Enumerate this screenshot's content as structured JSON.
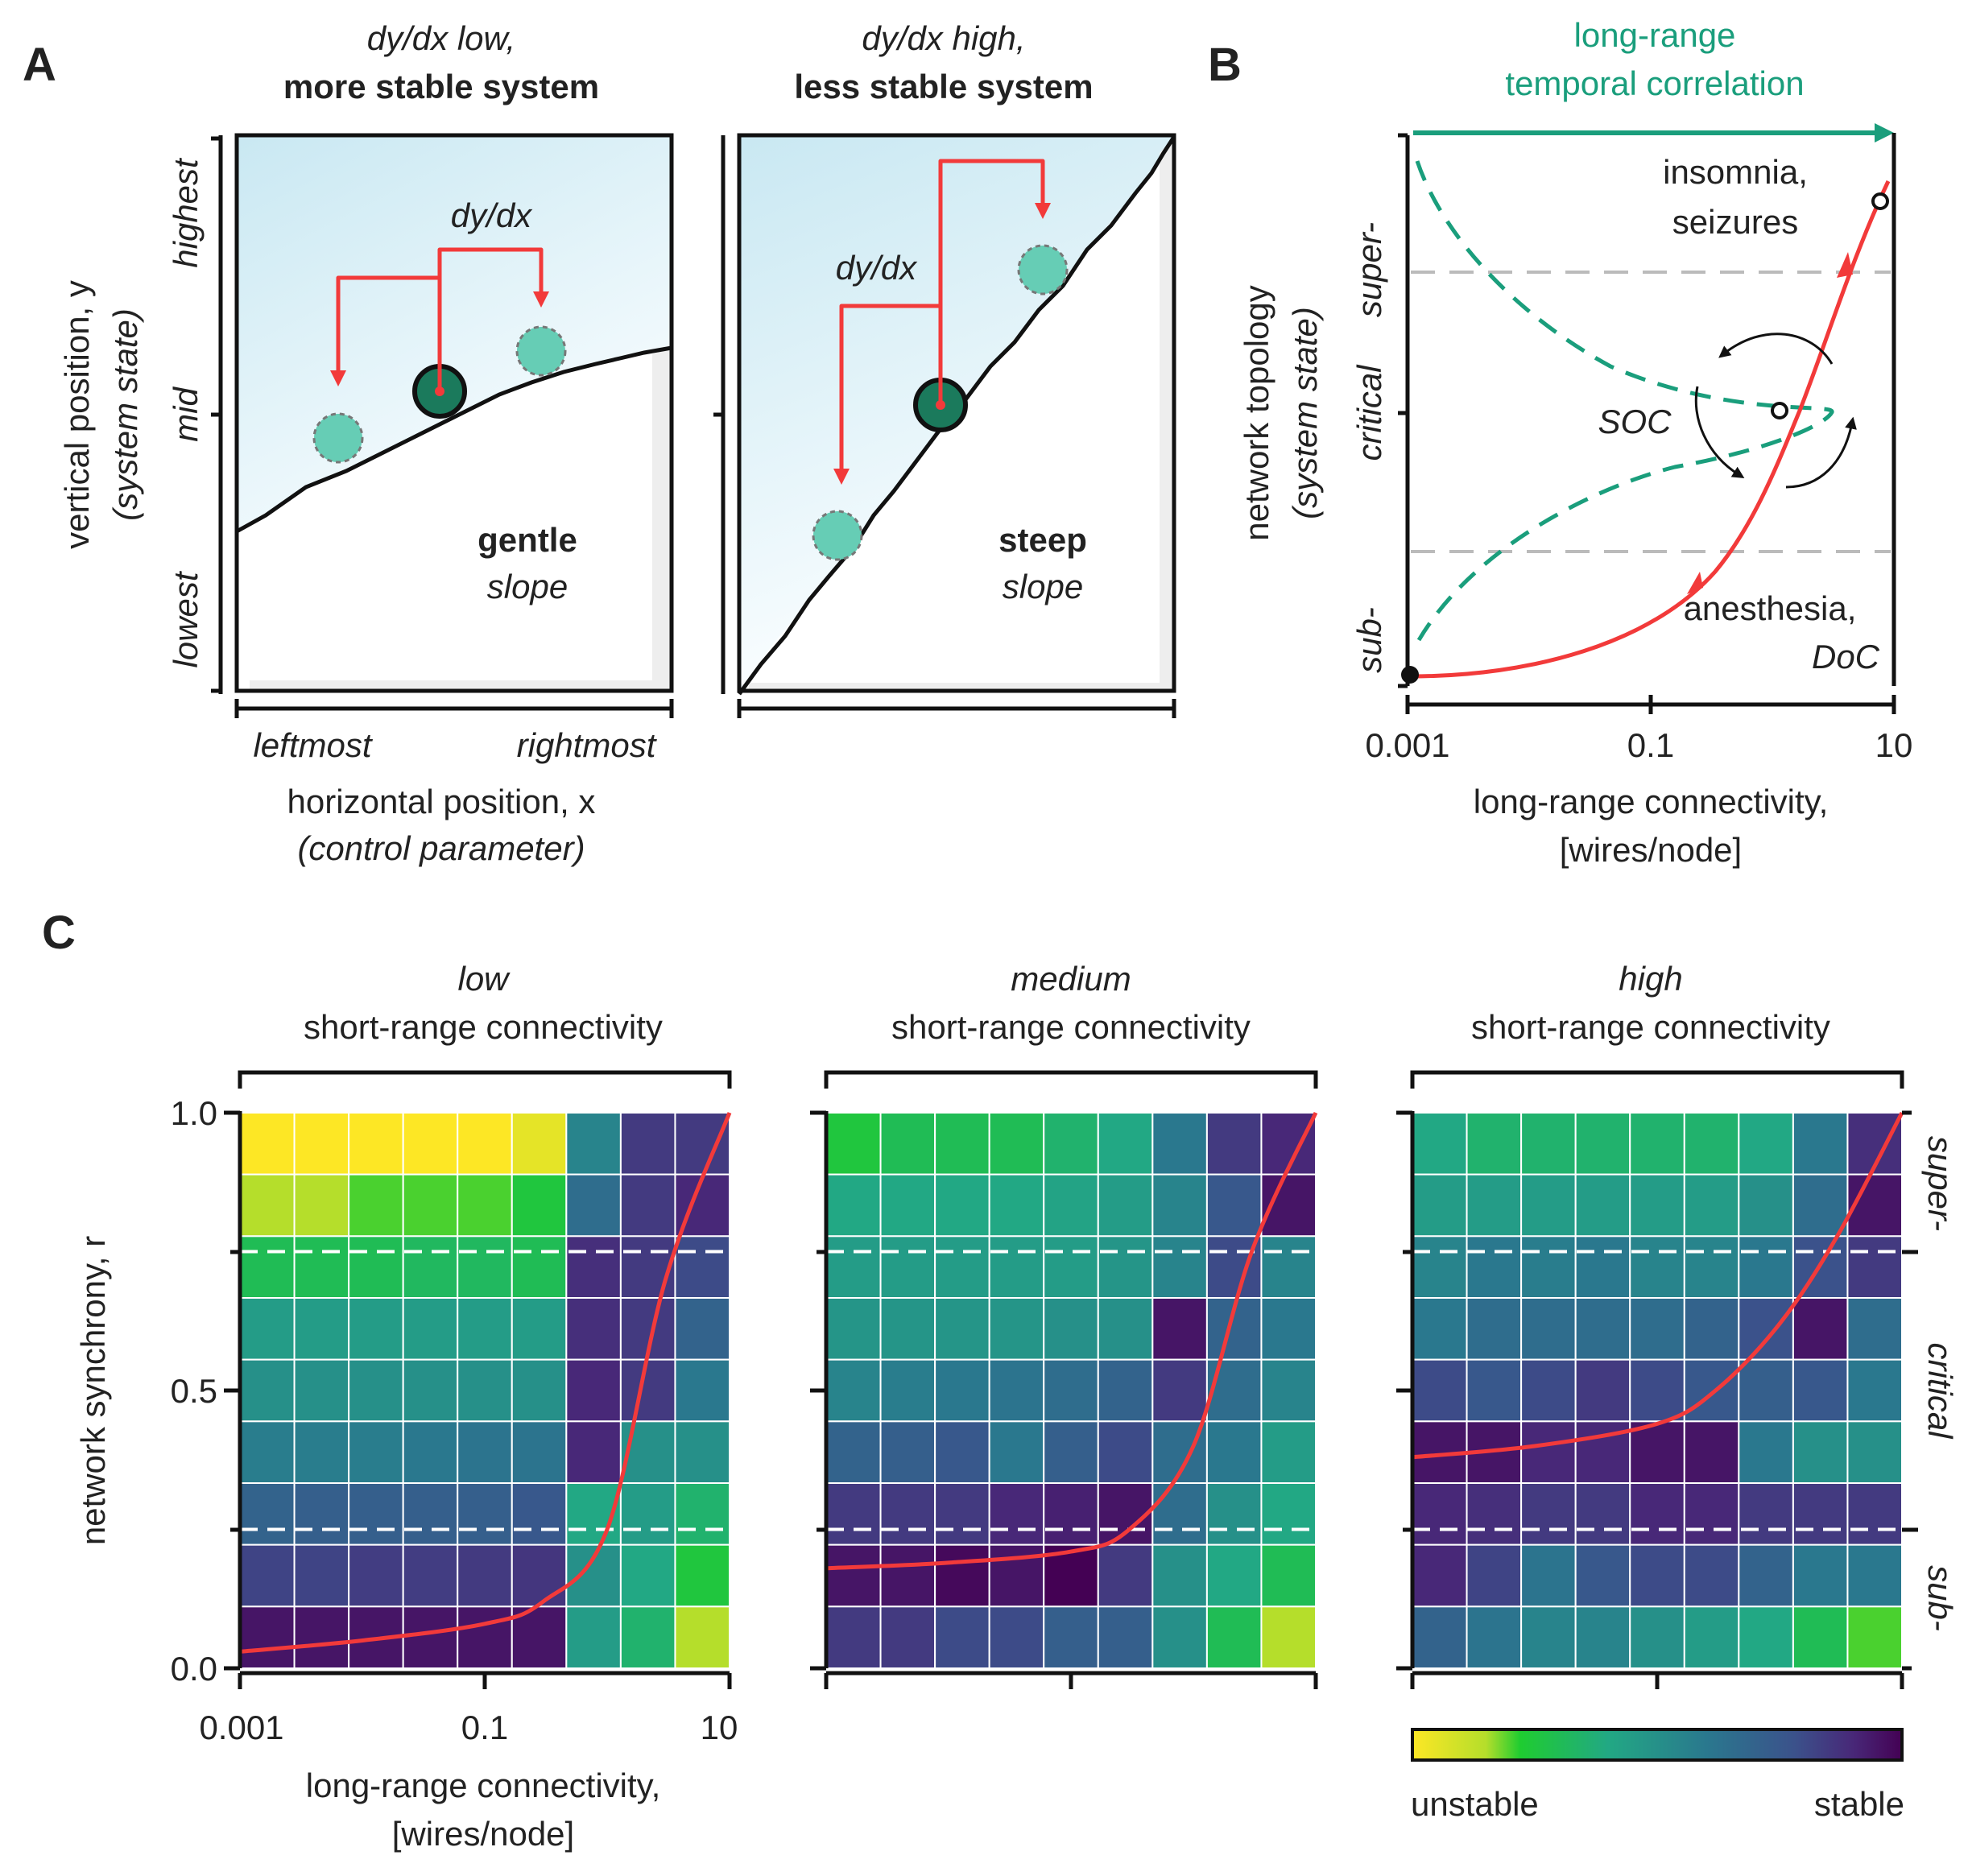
{
  "panel_labels": {
    "a": "A",
    "b": "B",
    "c": "C"
  },
  "panel_a": {
    "left": {
      "title_line1": "dy/dx low,",
      "title_line2": "more stable system",
      "slope_bold": "gentle",
      "slope_ital": "slope",
      "derivative": "dy/dx"
    },
    "right": {
      "title_line1": "dy/dx high,",
      "title_line2": "less stable system",
      "slope_bold": "steep",
      "slope_ital": "slope",
      "derivative": "dy/dx"
    },
    "y_ticks": [
      "highest",
      "mid",
      "lowest"
    ],
    "y_label_line1": "vertical position, y",
    "y_label_line2": "(system state)",
    "x_ticks": [
      "leftmost",
      "rightmost"
    ],
    "x_label_line1": "horizontal position, x",
    "x_label_line2": "(control parameter)"
  },
  "panel_b": {
    "top_label_line1": "long-range",
    "top_label_line2": "temporal correlation",
    "y_ticks": [
      "super-",
      "critical",
      "sub-"
    ],
    "y_label_line1": "network topology",
    "y_label_line2": "(system state)",
    "x_ticks": [
      "0.001",
      "0.1",
      "10"
    ],
    "x_label_line1": "long-range connectivity,",
    "x_label_line2": "[wires/node]",
    "annot_top_line1": "insomnia,",
    "annot_top_line2": "seizures",
    "annot_soc": "SOC",
    "annot_bottom_line1": "anesthesia,",
    "annot_bottom_line2": "DoC"
  },
  "panel_c": {
    "panels": [
      {
        "title_ital": "low",
        "title_line2": "short-range connectivity"
      },
      {
        "title_ital": "medium",
        "title_line2": "short-range connectivity"
      },
      {
        "title_ital": "high",
        "title_line2": "short-range connectivity"
      }
    ],
    "y_ticks": [
      "1.0",
      "0.5",
      "0.0"
    ],
    "y_label": "network synchrony, r",
    "x_ticks": [
      "0.001",
      "0.1",
      "10"
    ],
    "x_label_line1": "long-range connectivity,",
    "x_label_line2": "[wires/node]",
    "right_labels": [
      "super-",
      "critical",
      "sub-"
    ],
    "colorbar": {
      "low_label": "unstable",
      "high_label": "stable"
    }
  },
  "colors": {
    "red": "#f23a3a",
    "teal": "#1a9e7c",
    "ball": "#66cdb5",
    "ball_dark": "#1b7a5c",
    "sky": "#cfeaf3"
  },
  "chart_data": {
    "type": "heatmap",
    "rows": [
      "0.0-0.11",
      "0.11-0.22",
      "0.22-0.33",
      "0.33-0.44",
      "0.44-0.56",
      "0.56-0.67",
      "0.67-0.78",
      "0.78-0.89",
      "0.89-1.0"
    ],
    "columns": [
      "0.001",
      "0.003",
      "0.01",
      "0.03",
      "0.1",
      "0.3",
      "1",
      "3",
      "10"
    ],
    "value_meaning": "stability (0 = unstable, 1 = stable)",
    "colorbar": [
      "unstable",
      "stable"
    ],
    "panels": [
      {
        "name": "low short-range connectivity",
        "values_top_to_bottom": [
          [
            0.0,
            0.0,
            0.0,
            0.0,
            0.0,
            0.05,
            0.55,
            0.85,
            0.85
          ],
          [
            0.15,
            0.15,
            0.2,
            0.2,
            0.2,
            0.25,
            0.65,
            0.85,
            0.9
          ],
          [
            0.3,
            0.3,
            0.3,
            0.32,
            0.32,
            0.3,
            0.88,
            0.85,
            0.8
          ],
          [
            0.45,
            0.45,
            0.45,
            0.45,
            0.45,
            0.45,
            0.88,
            0.85,
            0.7
          ],
          [
            0.5,
            0.5,
            0.5,
            0.5,
            0.5,
            0.5,
            0.9,
            0.85,
            0.6
          ],
          [
            0.58,
            0.58,
            0.58,
            0.6,
            0.62,
            0.62,
            0.9,
            0.5,
            0.5
          ],
          [
            0.7,
            0.72,
            0.72,
            0.72,
            0.72,
            0.75,
            0.4,
            0.45,
            0.35
          ],
          [
            0.82,
            0.82,
            0.84,
            0.84,
            0.85,
            0.86,
            0.5,
            0.4,
            0.25
          ],
          [
            0.95,
            0.95,
            0.95,
            0.95,
            0.95,
            0.95,
            0.45,
            0.35,
            0.15
          ]
        ]
      },
      {
        "name": "medium short-range connectivity",
        "values_top_to_bottom": [
          [
            0.25,
            0.3,
            0.3,
            0.3,
            0.35,
            0.4,
            0.6,
            0.85,
            0.9
          ],
          [
            0.4,
            0.4,
            0.4,
            0.4,
            0.42,
            0.45,
            0.55,
            0.75,
            0.95
          ],
          [
            0.45,
            0.45,
            0.45,
            0.45,
            0.45,
            0.48,
            0.55,
            0.8,
            0.55
          ],
          [
            0.48,
            0.48,
            0.48,
            0.48,
            0.5,
            0.5,
            0.95,
            0.7,
            0.6
          ],
          [
            0.55,
            0.58,
            0.6,
            0.62,
            0.65,
            0.7,
            0.85,
            0.65,
            0.55
          ],
          [
            0.7,
            0.72,
            0.75,
            0.6,
            0.72,
            0.8,
            0.65,
            0.6,
            0.45
          ],
          [
            0.85,
            0.85,
            0.85,
            0.9,
            0.92,
            0.95,
            0.65,
            0.5,
            0.4
          ],
          [
            0.95,
            0.95,
            0.98,
            0.95,
            1.0,
            0.85,
            0.5,
            0.4,
            0.3
          ],
          [
            0.85,
            0.85,
            0.8,
            0.8,
            0.72,
            0.72,
            0.5,
            0.3,
            0.15
          ]
        ]
      },
      {
        "name": "high short-range connectivity",
        "values_top_to_bottom": [
          [
            0.4,
            0.35,
            0.35,
            0.35,
            0.35,
            0.35,
            0.4,
            0.6,
            0.88
          ],
          [
            0.45,
            0.45,
            0.45,
            0.45,
            0.45,
            0.45,
            0.5,
            0.65,
            0.95
          ],
          [
            0.55,
            0.6,
            0.58,
            0.6,
            0.55,
            0.55,
            0.6,
            0.78,
            0.85
          ],
          [
            0.6,
            0.65,
            0.65,
            0.65,
            0.65,
            0.7,
            0.78,
            0.95,
            0.65
          ],
          [
            0.8,
            0.75,
            0.8,
            0.85,
            0.8,
            0.75,
            0.72,
            0.75,
            0.6
          ],
          [
            0.95,
            0.95,
            0.9,
            0.9,
            0.95,
            0.95,
            0.6,
            0.5,
            0.5
          ],
          [
            0.9,
            0.88,
            0.85,
            0.85,
            0.9,
            0.9,
            0.85,
            0.85,
            0.85
          ],
          [
            0.9,
            0.82,
            0.62,
            0.75,
            0.8,
            0.8,
            0.7,
            0.6,
            0.6
          ],
          [
            0.7,
            0.62,
            0.55,
            0.55,
            0.5,
            0.45,
            0.4,
            0.3,
            0.2
          ]
        ]
      }
    ],
    "red_curves": [
      {
        "panel": "low short-range connectivity",
        "x": [
          0.001,
          0.01,
          0.1,
          0.3,
          1,
          3,
          10
        ],
        "r": [
          0.03,
          0.05,
          0.08,
          0.12,
          0.25,
          0.7,
          1.0
        ]
      },
      {
        "panel": "medium short-range connectivity",
        "x": [
          0.001,
          0.01,
          0.1,
          0.3,
          1,
          3,
          10
        ],
        "r": [
          0.18,
          0.19,
          0.21,
          0.25,
          0.4,
          0.75,
          1.0
        ]
      },
      {
        "panel": "high short-range connectivity",
        "x": [
          0.001,
          0.01,
          0.1,
          0.3,
          1,
          3,
          10
        ],
        "r": [
          0.38,
          0.4,
          0.44,
          0.5,
          0.62,
          0.78,
          1.0
        ]
      }
    ],
    "dashed_lines_r": [
      0.25,
      0.75
    ],
    "xlabel": "long-range connectivity, [wires/node]",
    "ylabel": "network synchrony, r",
    "ylim": [
      0,
      1
    ]
  }
}
